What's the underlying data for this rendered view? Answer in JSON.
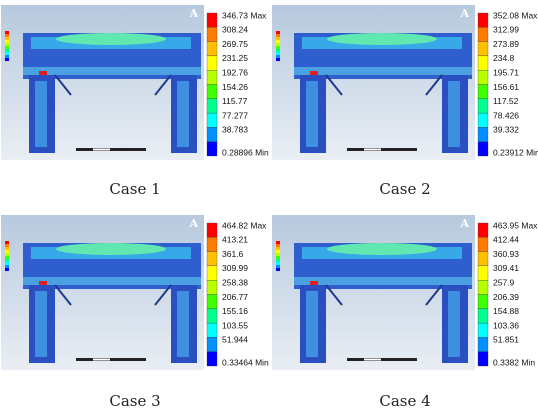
{
  "panels": [
    {
      "caption": "Case 1",
      "logo": "A",
      "legend": [
        "346.73 Max",
        "308.24",
        "269.75",
        "231.25",
        "192.76",
        "154.26",
        "115.77",
        "77.277",
        "38.783",
        "0.28896 Min"
      ]
    },
    {
      "caption": "Case 2",
      "logo": "A",
      "legend": [
        "352.08 Max",
        "312.99",
        "273.89",
        "234.8",
        "195.71",
        "156.61",
        "117.52",
        "78.426",
        "39.332",
        "0.23912 Min"
      ]
    },
    {
      "caption": "Case 3",
      "logo": "A",
      "legend": [
        "464.82 Max",
        "413.21",
        "361.6",
        "309.99",
        "258.38",
        "206.77",
        "155.16",
        "103.55",
        "51.944",
        "0.33464 Min"
      ]
    },
    {
      "caption": "Case 4",
      "logo": "A",
      "legend": [
        "463.95 Max",
        "412.44",
        "360.93",
        "309.41",
        "257.9",
        "206.39",
        "154.88",
        "103.36",
        "51.851",
        "0.3382 Min"
      ]
    }
  ]
}
